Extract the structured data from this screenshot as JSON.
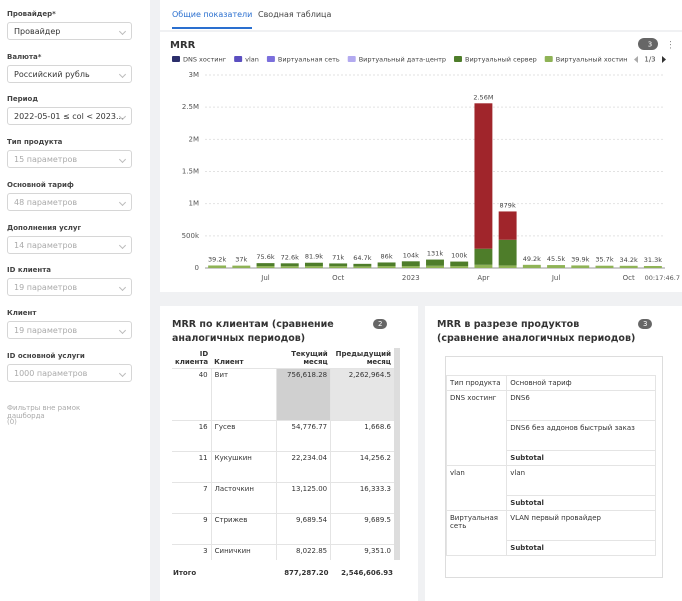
{
  "sidebar": {
    "filters": [
      {
        "label": "Провайдер*",
        "value": "Провайдер",
        "active": true
      },
      {
        "label": "Валюта*",
        "value": "Российский рубль",
        "active": true
      },
      {
        "label": "Период",
        "value": "2022-05-01 ≤ col < 2023...",
        "active": true
      },
      {
        "label": "Тип продукта",
        "value": "15 параметров",
        "active": false
      },
      {
        "label": "Основной тариф",
        "value": "48 параметров",
        "active": false
      },
      {
        "label": "Дополнения услуг",
        "value": "14 параметров",
        "active": false
      },
      {
        "label": "ID клиента",
        "value": "19 параметров",
        "active": false
      },
      {
        "label": "Клиент",
        "value": "19 параметров",
        "active": false
      },
      {
        "label": "ID основной услуги",
        "value": "1000 параметров",
        "active": false
      }
    ],
    "outside_filters": "Фильтры вне рамок дашборда",
    "outside_count": "(0)"
  },
  "tabs": [
    "Общие показатели",
    "Сводная таблица"
  ],
  "chart_data": {
    "type": "stacked_bar",
    "title": "MRR",
    "badge": "3",
    "legend": [
      {
        "name": "DNS хостинг",
        "color": "#2b2e6b"
      },
      {
        "name": "vlan",
        "color": "#5b4fc0"
      },
      {
        "name": "Виртуальная сеть",
        "color": "#7b6fdc"
      },
      {
        "name": "Виртуальный дата-центр",
        "color": "#b3aaf0"
      },
      {
        "name": "Виртуальный сервер",
        "color": "#4e7d2a"
      },
      {
        "name": "Виртуальный хостин",
        "color": "#8fb356"
      }
    ],
    "legend_page": "1/3",
    "categories": [
      null,
      null,
      "Jul",
      null,
      null,
      "Oct",
      null,
      null,
      "2023",
      null,
      null,
      "Apr",
      null,
      null,
      "Jul",
      null,
      null,
      "Oct",
      null
    ],
    "x_end_label": "00:17:46.7",
    "series": [
      {
        "color": "#8fb356",
        "values": [
          39200,
          37000,
          30000,
          28000,
          30000,
          28000,
          25000,
          30000,
          30000,
          35000,
          30000,
          50000,
          40000,
          49200,
          45500,
          39900,
          35700,
          34200,
          31300
        ]
      },
      {
        "color": "#4e7d2a",
        "values": [
          0,
          0,
          45600,
          44600,
          51900,
          43000,
          39700,
          56000,
          74000,
          96000,
          70000,
          250000,
          399000,
          0,
          0,
          0,
          0,
          0,
          0
        ]
      },
      {
        "color": "#a0252b",
        "values": [
          0,
          0,
          0,
          0,
          0,
          0,
          0,
          0,
          0,
          0,
          0,
          2260000,
          440000,
          0,
          0,
          0,
          0,
          0,
          0
        ]
      }
    ],
    "totals": [
      39200,
      37000,
      75600,
      72600,
      81900,
      71000,
      64700,
      86000,
      104000,
      131000,
      100000,
      2560000,
      879000,
      49200,
      45500,
      39900,
      35700,
      34200,
      31300
    ],
    "total_labels": [
      "39.2k",
      "37k",
      "75.6k",
      "72.6k",
      "81.9k",
      "71k",
      "64.7k",
      "86k",
      "104k",
      "131k",
      "100k",
      "2.56M",
      "879k",
      "49.2k",
      "45.5k",
      "39.9k",
      "35.7k",
      "34.2k",
      "31.3k"
    ],
    "ylim": [
      0,
      3000000
    ],
    "yticks": [
      0,
      {
        "value": 500000,
        "label": "500k"
      },
      {
        "value": 1000000,
        "label": "1M"
      },
      {
        "value": 1500000,
        "label": "1.5M"
      },
      {
        "value": 2000000,
        "label": "2M"
      },
      {
        "value": 2500000,
        "label": "2.5M"
      },
      {
        "value": 3000000,
        "label": "3M"
      }
    ],
    "grid": true
  },
  "clients_table": {
    "title": "MRR по клиентам (сравнение аналогичных периодов)",
    "badge": "2",
    "columns": [
      "ID клиента",
      "Клиент",
      "Текущий месяц",
      "Предыдущий месяц"
    ],
    "rows": [
      [
        "40",
        "Вит",
        "756,618.28",
        "2,262,964.5"
      ],
      [
        "16",
        "Гусев",
        "54,776.77",
        "1,668.6"
      ],
      [
        "11",
        "Кукушкин",
        "22,234.04",
        "14,256.2"
      ],
      [
        "7",
        "Ласточкин",
        "13,125.00",
        "16,333.3"
      ],
      [
        "9",
        "Стрижев",
        "9,689.54",
        "9,689.5"
      ],
      [
        "3",
        "Синичкин",
        "8,022.85",
        "9,351.0"
      ]
    ],
    "total_label": "Итого",
    "totals": [
      "877,287.20",
      "2,546,606.93"
    ]
  },
  "products_table": {
    "title": "MRR в разрезе продуктов (сравнение аналогичных периодов)",
    "badge": "3",
    "header": [
      "Тип продукта",
      "Основной тариф"
    ],
    "groups": [
      {
        "name": "DNS хостинг",
        "items": [
          "DNS6",
          "DNS6 без аддонов быстрый заказ"
        ],
        "subtotal": "Subtotal"
      },
      {
        "name": "vlan",
        "items": [
          "vlan"
        ],
        "subtotal": "Subtotal"
      },
      {
        "name": "Виртуальная сеть",
        "items": [
          "VLAN первый провайдер"
        ],
        "subtotal": "Subtotal"
      }
    ]
  }
}
